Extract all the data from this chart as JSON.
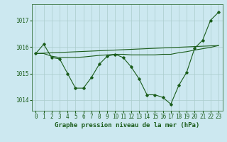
{
  "background_color": "#cce8f0",
  "grid_color": "#aacccc",
  "line_color": "#1a5c1a",
  "title": "Graphe pression niveau de la mer (hPa)",
  "tick_fontsize": 5.5,
  "title_fontsize": 6.5,
  "ylim": [
    1013.6,
    1017.6
  ],
  "yticks": [
    1014,
    1015,
    1016,
    1017
  ],
  "xticks": [
    0,
    1,
    2,
    3,
    4,
    5,
    6,
    7,
    8,
    9,
    10,
    11,
    12,
    13,
    14,
    15,
    16,
    17,
    18,
    19,
    20,
    21,
    22,
    23
  ],
  "curve1_x": [
    0,
    1,
    2,
    3,
    4,
    5,
    6,
    7,
    8,
    9,
    10,
    11,
    12,
    13,
    14,
    15,
    16,
    17,
    18,
    19,
    20,
    21,
    22,
    23
  ],
  "curve1_y": [
    1015.75,
    1016.1,
    1015.6,
    1015.55,
    1015.0,
    1014.45,
    1014.45,
    1014.85,
    1015.35,
    1015.65,
    1015.72,
    1015.6,
    1015.25,
    1014.8,
    1014.2,
    1014.2,
    1014.1,
    1013.85,
    1014.55,
    1015.05,
    1015.95,
    1016.25,
    1017.0,
    1017.3
  ],
  "curve2_x": [
    0,
    1,
    2,
    3,
    4,
    5,
    6,
    7,
    8,
    9,
    10,
    11,
    12,
    13,
    14,
    15,
    16,
    17,
    18,
    19,
    20,
    21,
    22,
    23
  ],
  "curve2_y": [
    1015.75,
    1015.75,
    1015.65,
    1015.6,
    1015.6,
    1015.6,
    1015.62,
    1015.65,
    1015.68,
    1015.7,
    1015.72,
    1015.72,
    1015.7,
    1015.7,
    1015.7,
    1015.7,
    1015.72,
    1015.72,
    1015.78,
    1015.82,
    1015.88,
    1015.93,
    1015.98,
    1016.05
  ],
  "curve3_x": [
    0,
    23
  ],
  "curve3_y": [
    1015.75,
    1016.05
  ]
}
